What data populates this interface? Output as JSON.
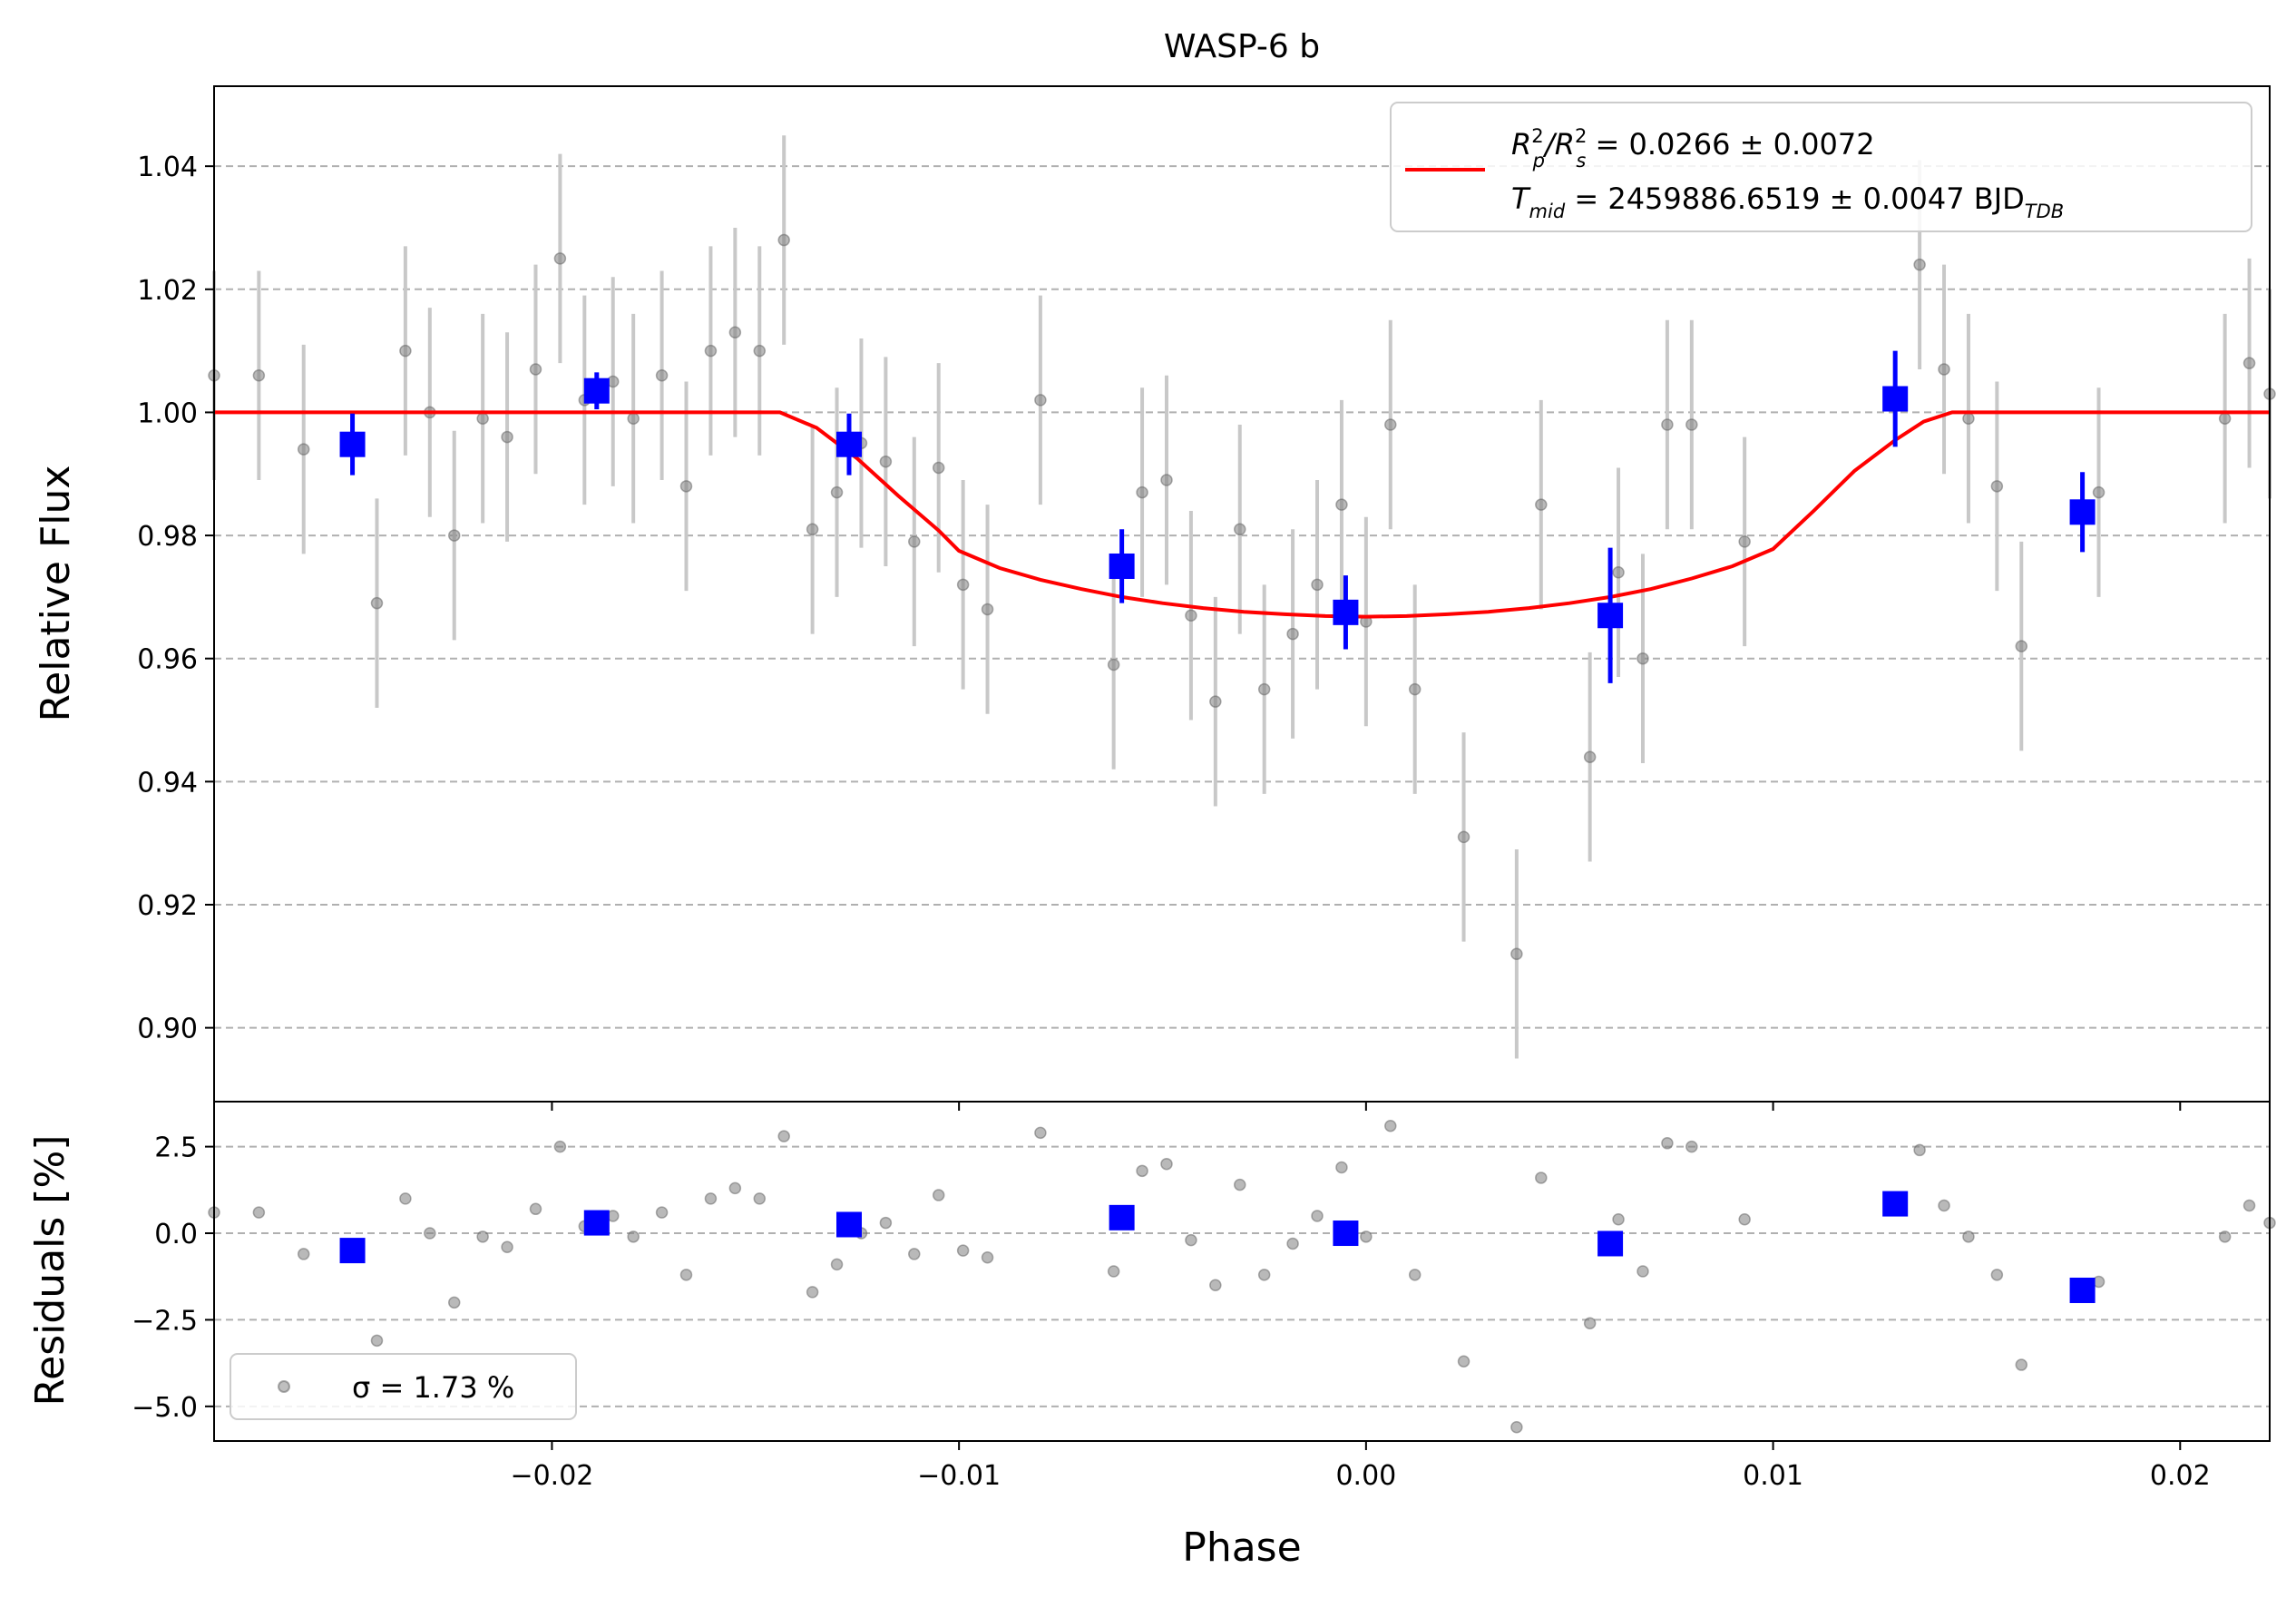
{
  "chart_data": [
    {
      "type": "scatter",
      "panel": "main",
      "title": "WASP-6 b",
      "ylabel": "Relative Flux",
      "xlim": [
        -0.0283,
        0.0222
      ],
      "ylim": [
        0.888,
        1.053
      ],
      "xticks": [
        -0.02,
        -0.01,
        0.0,
        0.01,
        0.02
      ],
      "xtick_labels": [
        "−0.02",
        "−0.01",
        "0.00",
        "0.01",
        "0.02"
      ],
      "yticks": [
        0.9,
        0.92,
        0.94,
        0.96,
        0.98,
        1.0,
        1.02,
        1.04
      ],
      "ytick_labels": [
        "0.90",
        "0.92",
        "0.94",
        "0.96",
        "0.98",
        "1.00",
        "1.02",
        "1.04"
      ],
      "grid": "horizontal-dashed",
      "legend": {
        "placement": "top-right",
        "line1": {
          "pre": "R",
          "sub1": "p",
          "mid1": "/R",
          "sub2": "s",
          "post": " = 0.0266 ± 0.0072"
        },
        "line2": {
          "pre": "T",
          "sub1": "mid",
          "mid": " = 2459886.6519 ± 0.0047 BJD",
          "sub2": "TDB"
        }
      },
      "series": [
        {
          "name": "raw",
          "color": "#808080",
          "errcolor": "#c8c8c8",
          "x": [
            -0.0283,
            -0.0272,
            -0.0261,
            -0.0243,
            -0.0236,
            -0.023,
            -0.0224,
            -0.0217,
            -0.0211,
            -0.0204,
            -0.0198,
            -0.0192,
            -0.0185,
            -0.018,
            -0.0173,
            -0.0167,
            -0.0161,
            -0.0155,
            -0.0149,
            -0.0143,
            -0.0136,
            -0.013,
            -0.0124,
            -0.0118,
            -0.0111,
            -0.0105,
            -0.0099,
            -0.0093,
            -0.008,
            -0.0062,
            -0.0055,
            -0.0049,
            -0.0043,
            -0.0037,
            -0.0031,
            -0.0025,
            -0.0018,
            -0.0012,
            -0.0006,
            0.0,
            0.0006,
            0.0012,
            0.0024,
            0.0037,
            0.0043,
            0.0055,
            0.0062,
            0.0068,
            0.0074,
            0.008,
            0.0093,
            0.0136,
            0.0142,
            0.0148,
            0.0155,
            0.0161,
            0.018,
            0.0211,
            0.0217,
            0.0222
          ],
          "y": [
            1.006,
            1.006,
            0.994,
            0.969,
            1.01,
            1.0,
            0.98,
            0.999,
            0.996,
            1.007,
            1.025,
            1.002,
            1.005,
            0.999,
            1.006,
            0.988,
            1.01,
            1.013,
            1.01,
            1.028,
            0.981,
            0.987,
            0.995,
            0.992,
            0.979,
            0.991,
            0.972,
            0.968,
            1.002,
            0.959,
            0.987,
            0.989,
            0.967,
            0.953,
            0.981,
            0.955,
            0.964,
            0.972,
            0.985,
            0.966,
            0.998,
            0.955,
            0.931,
            0.912,
            0.985,
            0.944,
            0.974,
            0.96,
            0.998,
            0.998,
            0.979,
            1.024,
            1.007,
            0.999,
            0.988,
            0.962,
            0.987,
            0.999,
            1.008,
            1.003
          ],
          "err": 0.017
        },
        {
          "name": "binned",
          "color": "#0000ff",
          "x": [
            -0.0249,
            -0.0189,
            -0.0127,
            -0.006,
            -0.0005,
            0.006,
            0.013,
            0.0176
          ],
          "y": [
            0.9948,
            1.0035,
            0.9948,
            0.975,
            0.9675,
            0.967,
            1.0022,
            0.9838
          ],
          "err": [
            0.005,
            0.003,
            0.005,
            0.006,
            0.006,
            0.011,
            0.0078,
            0.0065
          ]
        }
      ],
      "model": {
        "name": "transit-model",
        "color": "#ff0000",
        "x": [
          -0.0283,
          -0.0144,
          -0.0135,
          -0.0125,
          -0.0115,
          -0.0105,
          -0.01,
          -0.009,
          -0.008,
          -0.007,
          -0.006,
          -0.005,
          -0.004,
          -0.003,
          -0.002,
          -0.001,
          0.0,
          0.001,
          0.002,
          0.003,
          0.004,
          0.005,
          0.006,
          0.007,
          0.008,
          0.009,
          0.01,
          0.011,
          0.012,
          0.013,
          0.0137,
          0.0144,
          0.0222
        ],
        "y": [
          1.0,
          1.0,
          0.9975,
          0.9925,
          0.9865,
          0.9808,
          0.9775,
          0.9747,
          0.9728,
          0.9713,
          0.97,
          0.969,
          0.9682,
          0.9676,
          0.9672,
          0.9669,
          0.9668,
          0.9669,
          0.9672,
          0.9676,
          0.9682,
          0.969,
          0.97,
          0.9713,
          0.973,
          0.975,
          0.9778,
          0.984,
          0.9905,
          0.9955,
          0.9985,
          1.0,
          1.0
        ]
      }
    },
    {
      "type": "scatter",
      "panel": "residuals",
      "xlabel": "Phase",
      "ylabel": "Residuals [%]",
      "xlim": [
        -0.0283,
        0.0222
      ],
      "ylim": [
        -6.0,
        3.8
      ],
      "yticks": [
        2.5,
        0.0,
        -2.5,
        -5.0
      ],
      "ytick_labels": [
        "2.5",
        "0.0",
        "−2.5",
        "−5.0"
      ],
      "grid": "horizontal-dashed",
      "legend": {
        "placement": "bottom-left",
        "label": "σ = 1.73 %"
      },
      "series": [
        {
          "name": "raw",
          "color": "#808080",
          "x": [
            -0.0283,
            -0.0272,
            -0.0261,
            -0.0243,
            -0.0236,
            -0.023,
            -0.0224,
            -0.0217,
            -0.0211,
            -0.0204,
            -0.0198,
            -0.0192,
            -0.0185,
            -0.018,
            -0.0173,
            -0.0167,
            -0.0161,
            -0.0155,
            -0.0149,
            -0.0143,
            -0.0136,
            -0.013,
            -0.0124,
            -0.0118,
            -0.0111,
            -0.0105,
            -0.0099,
            -0.0093,
            -0.008,
            -0.0062,
            -0.0055,
            -0.0049,
            -0.0043,
            -0.0037,
            -0.0031,
            -0.0025,
            -0.0018,
            -0.0012,
            -0.0006,
            0.0,
            0.0006,
            0.0012,
            0.0024,
            0.0037,
            0.0043,
            0.0055,
            0.0062,
            0.0068,
            0.0074,
            0.008,
            0.0093,
            0.0136,
            0.0142,
            0.0148,
            0.0155,
            0.0161,
            0.018,
            0.0211,
            0.0217,
            0.0222
          ],
          "y": [
            0.6,
            0.6,
            -0.6,
            -3.1,
            1.0,
            0.0,
            -2.0,
            -0.1,
            -0.4,
            0.7,
            2.5,
            0.2,
            0.5,
            -0.1,
            0.6,
            -1.2,
            1.0,
            1.3,
            1.0,
            2.8,
            -1.7,
            -0.9,
            0.0,
            0.3,
            -0.6,
            1.1,
            -0.5,
            -0.7,
            2.9,
            -1.1,
            1.8,
            2.0,
            -0.2,
            -1.5,
            1.4,
            -1.2,
            -0.3,
            0.5,
            1.9,
            -0.1,
            3.1,
            -1.2,
            -3.7,
            -5.6,
            1.6,
            -2.6,
            0.4,
            -1.1,
            2.6,
            2.5,
            0.4,
            2.4,
            0.8,
            -0.1,
            -1.2,
            -3.8,
            -1.4,
            -0.1,
            0.8,
            0.3
          ]
        },
        {
          "name": "binned",
          "color": "#0000ff",
          "x": [
            -0.0249,
            -0.0189,
            -0.0127,
            -0.006,
            -0.0005,
            0.006,
            0.013,
            0.0176
          ],
          "y": [
            -0.5,
            0.3,
            0.25,
            0.45,
            0.0,
            -0.3,
            0.85,
            -1.65
          ]
        }
      ]
    }
  ]
}
